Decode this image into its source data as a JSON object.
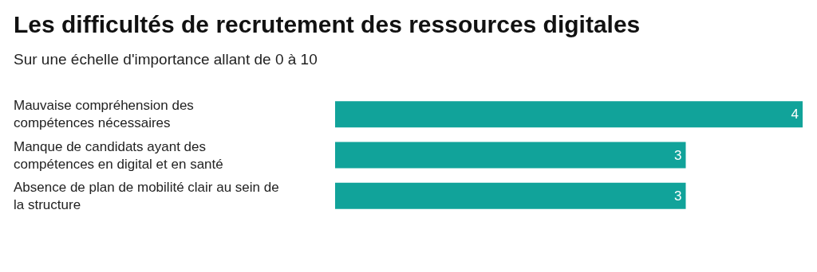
{
  "chart_data": {
    "type": "bar",
    "orientation": "horizontal",
    "title": "Les difficultés de recrutement des ressources digitales",
    "subtitle": "Sur une échelle d'importance allant de 0 à 10",
    "categories": [
      "Mauvaise compréhension des compétences nécessaires",
      "Manque de candidats ayant des compétences en digital et en santé",
      "Absence de plan de mobilité clair au sein de la structure"
    ],
    "values": [
      4,
      3,
      3
    ],
    "color": "#11a39a",
    "data_labels": true
  }
}
